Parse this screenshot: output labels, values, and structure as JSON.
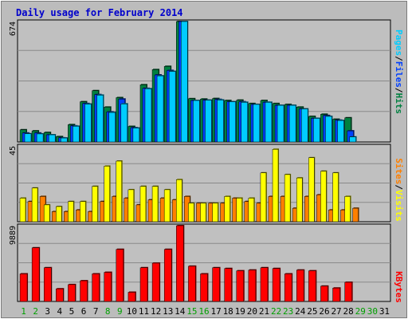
{
  "title": "Daily usage for February 2014",
  "colors": {
    "frame": "#bcbcbc",
    "plot_bg": "#c0c0c0",
    "title": "#0000cc",
    "hits": "#008040",
    "files": "#0040ff",
    "pages": "#00ccff",
    "visits": "#ffff00",
    "sites": "#ff8000",
    "kbytes": "#ff0000"
  },
  "legend": {
    "pages": "Pages",
    "files": "Files",
    "hits": "Hits",
    "sites": "Sites",
    "visits": "Visits",
    "kbytes": "KBytes",
    "sep": "/"
  },
  "chart_data": [
    {
      "type": "bar",
      "name": "hits-files-pages",
      "ymax_label": "674",
      "ylim": [
        0,
        674
      ],
      "categories": [
        "1",
        "2",
        "3",
        "4",
        "5",
        "6",
        "7",
        "8",
        "9",
        "10",
        "11",
        "12",
        "13",
        "14",
        "15",
        "16",
        "17",
        "18",
        "19",
        "20",
        "21",
        "22",
        "23",
        "24",
        "25",
        "26",
        "27",
        "28",
        "29",
        "30",
        "31"
      ],
      "weekend_days": [
        "1",
        "2",
        "8",
        "9",
        "15",
        "16",
        "22",
        "23",
        "29",
        "30"
      ],
      "series": [
        {
          "name": "Hits",
          "values": [
            68,
            62,
            53,
            30,
            97,
            225,
            287,
            195,
            248,
            87,
            320,
            405,
            423,
            674,
            242,
            240,
            243,
            232,
            234,
            215,
            232,
            215,
            210,
            195,
            143,
            155,
            127,
            135,
            null,
            null,
            null
          ]
        },
        {
          "name": "Files",
          "values": [
            50,
            50,
            40,
            23,
            90,
            215,
            265,
            168,
            240,
            80,
            300,
            375,
            400,
            674,
            232,
            234,
            238,
            225,
            225,
            210,
            222,
            205,
            205,
            185,
            132,
            148,
            122,
            62,
            null,
            null,
            null
          ]
        },
        {
          "name": "Pages",
          "values": [
            46,
            45,
            40,
            22,
            88,
            212,
            262,
            165,
            213,
            78,
            298,
            370,
            395,
            674,
            232,
            234,
            235,
            225,
            222,
            210,
            222,
            205,
            205,
            185,
            132,
            143,
            120,
            28,
            null,
            null,
            null
          ]
        }
      ]
    },
    {
      "type": "bar",
      "name": "visits-sites",
      "ymax_label": "45",
      "ylim": [
        0,
        45
      ],
      "series": [
        {
          "name": "Visits",
          "values": [
            14,
            20,
            10,
            9,
            12,
            12,
            21,
            33,
            36,
            19,
            21,
            21,
            19,
            25,
            11,
            11,
            11,
            15,
            14,
            14,
            29,
            43,
            28,
            26,
            38,
            30,
            29,
            15,
            null,
            null,
            null
          ]
        },
        {
          "name": "Sites",
          "values": [
            12,
            15,
            6,
            6,
            7,
            6,
            12,
            15,
            14,
            10,
            13,
            14,
            13,
            15,
            11,
            11,
            11,
            14,
            12,
            11,
            15,
            15,
            8,
            15,
            16,
            7,
            7,
            8,
            null,
            null,
            null
          ]
        }
      ]
    },
    {
      "type": "bar",
      "name": "kbytes",
      "ymax_label": "9889",
      "ylim": [
        0,
        9889
      ],
      "series": [
        {
          "name": "KBytes",
          "values": [
            3600,
            7000,
            4400,
            1650,
            2200,
            2700,
            3600,
            3800,
            6800,
            1200,
            4400,
            5000,
            6800,
            9889,
            4600,
            3600,
            4400,
            4300,
            4000,
            4100,
            4400,
            4300,
            3600,
            4100,
            4000,
            2000,
            1750,
            2500,
            null,
            null,
            null
          ]
        }
      ]
    }
  ]
}
